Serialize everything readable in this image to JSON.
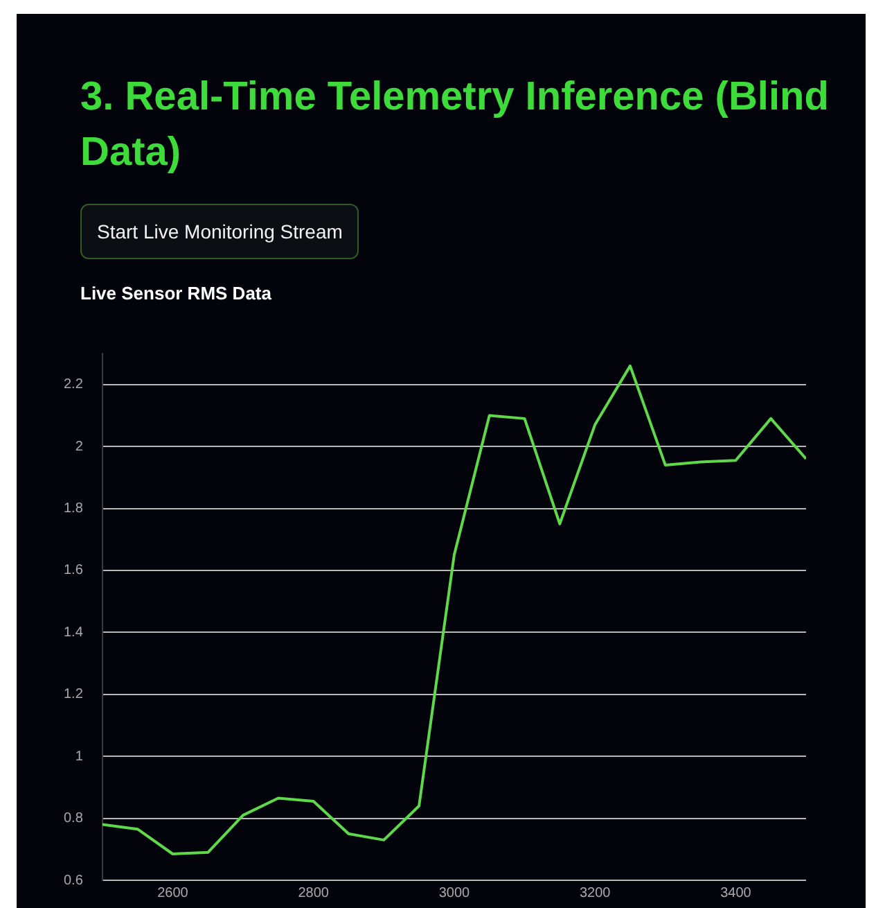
{
  "chart_data": {
    "type": "line",
    "title": "3. Real-Time Telemetry Inference (Blind Data)",
    "subtitle": "Live Sensor RMS Data",
    "annotations": [
      "Start Live Monitoring Stream"
    ],
    "x": [
      2500,
      2550,
      2600,
      2650,
      2700,
      2750,
      2800,
      2850,
      2900,
      2950,
      3000,
      3050,
      3100,
      3150,
      3200,
      3250,
      3300,
      3350,
      3400,
      3450,
      3500
    ],
    "series": [
      {
        "color": "#5fd84a",
        "values": [
          0.78,
          0.765,
          0.685,
          0.69,
          0.81,
          0.865,
          0.855,
          0.75,
          0.73,
          0.84,
          1.65,
          2.1,
          2.09,
          1.75,
          2.07,
          2.26,
          1.94,
          1.95,
          1.955,
          2.09,
          1.96
        ]
      }
    ],
    "xlim": [
      2500,
      3500
    ],
    "xticks": [
      2600,
      2800,
      3000,
      3200,
      3400
    ],
    "ylim": [
      0.6,
      2.3
    ],
    "yticks": [
      0.6,
      0.8,
      1,
      1.2,
      1.4,
      1.6,
      1.8,
      2,
      2.2
    ],
    "grid": "y",
    "legend": false,
    "marker": "none",
    "line_style": "solid"
  }
}
